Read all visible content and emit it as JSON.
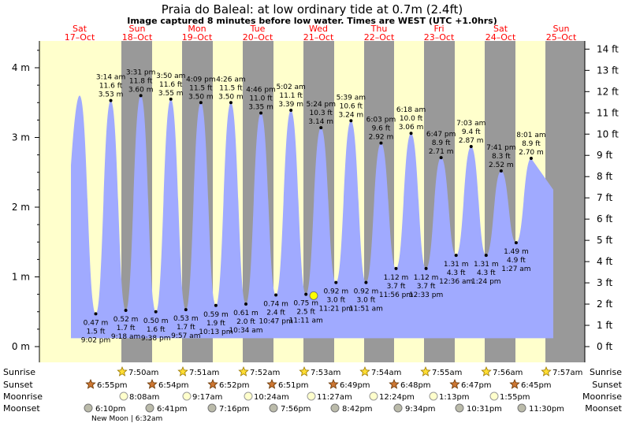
{
  "title": "Praia do Baleal: at low  ordinary tide at 0.7m (2.4ft)",
  "subtitle": "Image captured 8 minutes before low water. Times are WEST (UTC +1.0hrs)",
  "colors": {
    "day": "#ffffcc",
    "night": "#999999",
    "tide": "#a0aaff",
    "title_red": "#ff0000"
  },
  "chart_data": {
    "type": "area",
    "title": "Praia do Baleal: at low  ordinary tide at 0.7m (2.4ft)",
    "ylabel_left_unit": "m",
    "ylabel_right_unit": "ft",
    "ylim_m": [
      0,
      4.2
    ],
    "y_ticks_m": [
      "0 m",
      "1 m",
      "2 m",
      "3 m",
      "4 m"
    ],
    "y_ticks_ft": [
      "0 ft",
      "1 ft",
      "2 ft",
      "3 ft",
      "4 ft",
      "5 ft",
      "6 ft",
      "7 ft",
      "8 ft",
      "9 ft",
      "10 ft",
      "11 ft",
      "12 ft",
      "13 ft",
      "14 ft"
    ],
    "days": [
      {
        "name": "Sat",
        "date": "17–Oct"
      },
      {
        "name": "Sun",
        "date": "18–Oct"
      },
      {
        "name": "Mon",
        "date": "19–Oct"
      },
      {
        "name": "Tue",
        "date": "20–Oct"
      },
      {
        "name": "Wed",
        "date": "21–Oct"
      },
      {
        "name": "Thu",
        "date": "22–Oct"
      },
      {
        "name": "Fri",
        "date": "23–Oct"
      },
      {
        "name": "Sat",
        "date": "24–Oct"
      },
      {
        "name": "Sun",
        "date": "25–Oct"
      }
    ],
    "tides": [
      {
        "type": "high",
        "time": "",
        "m": 3.6,
        "ft": "",
        "mtxt": ""
      },
      {
        "type": "low",
        "time": "9:02 pm",
        "m": 0.47,
        "ft": "1.5 ft",
        "mtxt": "0.47 m"
      },
      {
        "type": "high",
        "time": "3:14 am",
        "m": 3.53,
        "ft": "11.6 ft",
        "mtxt": "3.53 m"
      },
      {
        "type": "low",
        "time": "9:18 am",
        "m": 0.52,
        "ft": "1.7 ft",
        "mtxt": "0.52 m"
      },
      {
        "type": "high",
        "time": "3:31 pm",
        "m": 3.6,
        "ft": "11.8 ft",
        "mtxt": "3.60 m"
      },
      {
        "type": "low",
        "time": "9:38 pm",
        "m": 0.5,
        "ft": "1.6 ft",
        "mtxt": "0.50 m"
      },
      {
        "type": "high",
        "time": "3:50 am",
        "m": 3.55,
        "ft": "11.6 ft",
        "mtxt": "3.55 m"
      },
      {
        "type": "low",
        "time": "9:57 am",
        "m": 0.53,
        "ft": "1.7 ft",
        "mtxt": "0.53 m"
      },
      {
        "type": "high",
        "time": "4:09 pm",
        "m": 3.5,
        "ft": "11.5 ft",
        "mtxt": "3.50 m"
      },
      {
        "type": "low",
        "time": "10:13 pm",
        "m": 0.59,
        "ft": "1.9 ft",
        "mtxt": "0.59 m"
      },
      {
        "type": "high",
        "time": "4:26 am",
        "m": 3.5,
        "ft": "11.5 ft",
        "mtxt": "3.50 m"
      },
      {
        "type": "low",
        "time": "10:34 am",
        "m": 0.61,
        "ft": "2.0 ft",
        "mtxt": "0.61 m"
      },
      {
        "type": "high",
        "time": "4:46 pm",
        "m": 3.35,
        "ft": "11.0 ft",
        "mtxt": "3.35 m"
      },
      {
        "type": "low",
        "time": "10:47 pm",
        "m": 0.74,
        "ft": "2.4 ft",
        "mtxt": "0.74 m"
      },
      {
        "type": "high",
        "time": "5:02 am",
        "m": 3.39,
        "ft": "11.1 ft",
        "mtxt": "3.39 m"
      },
      {
        "type": "low",
        "time": "11:11 am",
        "m": 0.75,
        "ft": "2.5 ft",
        "mtxt": "0.75 m"
      },
      {
        "type": "high",
        "time": "5:24 pm",
        "m": 3.14,
        "ft": "10.3 ft",
        "mtxt": "3.14 m"
      },
      {
        "type": "low",
        "time": "11:21 pm",
        "m": 0.92,
        "ft": "3.0 ft",
        "mtxt": "0.92 m"
      },
      {
        "type": "high",
        "time": "5:39 am",
        "m": 3.24,
        "ft": "10.6 ft",
        "mtxt": "3.24 m"
      },
      {
        "type": "low",
        "time": "11:51 am",
        "m": 0.92,
        "ft": "3.0 ft",
        "mtxt": "0.92 m"
      },
      {
        "type": "high",
        "time": "6:03 pm",
        "m": 2.92,
        "ft": "9.6 ft",
        "mtxt": "2.92 m"
      },
      {
        "type": "low",
        "time": "11:56 pm",
        "m": 1.12,
        "ft": "3.7 ft",
        "mtxt": "1.12 m"
      },
      {
        "type": "high",
        "time": "6:18 am",
        "m": 3.06,
        "ft": "10.0 ft",
        "mtxt": "3.06 m"
      },
      {
        "type": "low",
        "time": "12:33 pm",
        "m": 1.12,
        "ft": "3.7 ft",
        "mtxt": "1.12 m"
      },
      {
        "type": "high",
        "time": "6:47 pm",
        "m": 2.71,
        "ft": "8.9 ft",
        "mtxt": "2.71 m"
      },
      {
        "type": "low",
        "time": "12:36 am",
        "m": 1.31,
        "ft": "4.3 ft",
        "mtxt": "1.31 m"
      },
      {
        "type": "high",
        "time": "7:03 am",
        "m": 2.87,
        "ft": "9.4 ft",
        "mtxt": "2.87 m"
      },
      {
        "type": "low",
        "time": "1:24 pm",
        "m": 1.31,
        "ft": "4.3 ft",
        "mtxt": "1.31 m"
      },
      {
        "type": "high",
        "time": "7:41 pm",
        "m": 2.52,
        "ft": "8.3 ft",
        "mtxt": "2.52 m"
      },
      {
        "type": "low",
        "time": "1:27 am",
        "m": 1.49,
        "ft": "4.9 ft",
        "mtxt": "1.49 m"
      },
      {
        "type": "high",
        "time": "8:01 am",
        "m": 2.7,
        "ft": "8.9 ft",
        "mtxt": "2.70 m"
      }
    ],
    "current_marker_m": 0.73
  },
  "almanac": {
    "labels": {
      "sunrise": "Sunrise",
      "sunset": "Sunset",
      "moonrise": "Moonrise",
      "moonset": "Moonset"
    },
    "sunrise": [
      "7:50am",
      "7:51am",
      "7:52am",
      "7:53am",
      "7:54am",
      "7:55am",
      "7:56am",
      "7:57am"
    ],
    "sunset": [
      "6:55pm",
      "6:54pm",
      "6:52pm",
      "6:51pm",
      "6:49pm",
      "6:48pm",
      "6:47pm",
      "6:45pm"
    ],
    "moonrise": [
      "8:08am",
      "9:17am",
      "10:24am",
      "11:27am",
      "12:24pm",
      "1:13pm",
      "1:55pm"
    ],
    "moonset": [
      "6:10pm",
      "6:41pm",
      "7:16pm",
      "7:56pm",
      "8:42pm",
      "9:34pm",
      "10:31pm",
      "11:30pm"
    ],
    "new_moon": "New Moon | 6:32am"
  }
}
